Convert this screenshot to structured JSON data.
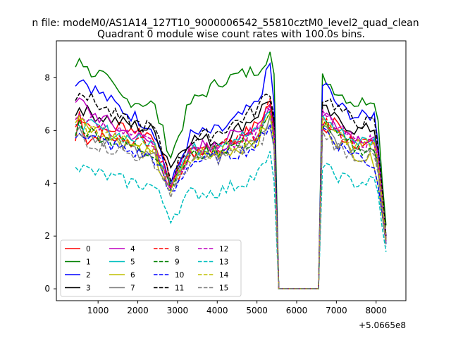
{
  "chart_data": {
    "type": "line",
    "suptitle": "n file: modeM0/AS1A14_127T10_9000006542_55810cztM0_level2_quad_clean",
    "title": "Quadrant 0 module wise count rates with 100.0s bins.",
    "xlabel": "",
    "ylabel": "",
    "x_offset_label": "+5.0665e8",
    "xlim": [
      -50,
      8750
    ],
    "ylim": [
      -0.45,
      9.4
    ],
    "x_ticks": [
      1000,
      2000,
      3000,
      4000,
      5000,
      6000,
      7000,
      8000
    ],
    "x_tick_labels": [
      "1000",
      "2000",
      "3000",
      "4000",
      "5000",
      "6000",
      "7000",
      "8000"
    ],
    "y_ticks": [
      0,
      2,
      4,
      6,
      8
    ],
    "y_tick_labels": [
      "0",
      "2",
      "4",
      "6",
      "8"
    ],
    "legend_position": "lower-left",
    "legend_columns": 4,
    "gap_segment": {
      "x": [
        5550,
        6550
      ],
      "y": 0
    },
    "series": [
      {
        "name": "0",
        "color": "#ff0000",
        "dash": "solid",
        "bursts": [
          [
            420,
            5.5
          ],
          [
            540,
            6.8
          ],
          [
            700,
            5.6
          ],
          [
            1600,
            6.2
          ],
          [
            2400,
            5.8
          ],
          [
            2840,
            4.0
          ],
          [
            3300,
            5.3
          ],
          [
            4100,
            5.2
          ],
          [
            5000,
            6.2
          ],
          [
            5350,
            7.1
          ],
          [
            5450,
            5.9
          ],
          [
            6700,
            6.0
          ],
          [
            7000,
            6.6
          ],
          [
            7500,
            5.4
          ],
          [
            8000,
            5.7
          ],
          [
            8250,
            2.0
          ]
        ]
      },
      {
        "name": "1",
        "color": "#008000",
        "dash": "solid",
        "bursts": [
          [
            420,
            8.4
          ],
          [
            540,
            8.9
          ],
          [
            700,
            8.3
          ],
          [
            1100,
            8.1
          ],
          [
            1600,
            7.2
          ],
          [
            2400,
            7.0
          ],
          [
            2840,
            5.0
          ],
          [
            3300,
            7.0
          ],
          [
            4100,
            7.9
          ],
          [
            5000,
            8.3
          ],
          [
            5350,
            9.0
          ],
          [
            5450,
            7.7
          ],
          [
            6700,
            8.0
          ],
          [
            7000,
            7.5
          ],
          [
            7500,
            7.0
          ],
          [
            8000,
            7.3
          ],
          [
            8250,
            2.4
          ]
        ]
      },
      {
        "name": "2",
        "color": "#0000ff",
        "dash": "solid",
        "bursts": [
          [
            420,
            7.7
          ],
          [
            540,
            8.1
          ],
          [
            700,
            7.8
          ],
          [
            1600,
            6.8
          ],
          [
            2400,
            6.1
          ],
          [
            2840,
            3.9
          ],
          [
            3300,
            5.8
          ],
          [
            4100,
            6.0
          ],
          [
            5000,
            7.0
          ],
          [
            5350,
            8.6
          ],
          [
            5450,
            6.5
          ],
          [
            6700,
            7.8
          ],
          [
            7000,
            7.0
          ],
          [
            7500,
            6.5
          ],
          [
            8000,
            6.6
          ],
          [
            8250,
            2.0
          ]
        ]
      },
      {
        "name": "3",
        "color": "#000000",
        "dash": "solid",
        "bursts": [
          [
            420,
            6.5
          ],
          [
            540,
            7.0
          ],
          [
            700,
            6.7
          ],
          [
            1600,
            6.3
          ],
          [
            2400,
            6.0
          ],
          [
            2840,
            4.7
          ],
          [
            3300,
            5.7
          ],
          [
            4100,
            5.6
          ],
          [
            5000,
            6.6
          ],
          [
            5350,
            7.3
          ],
          [
            5450,
            6.0
          ],
          [
            6700,
            6.8
          ],
          [
            7000,
            6.4
          ],
          [
            7500,
            6.0
          ],
          [
            8000,
            6.1
          ],
          [
            8250,
            1.9
          ]
        ]
      },
      {
        "name": "4",
        "color": "#bf00bf",
        "dash": "solid",
        "bursts": [
          [
            420,
            6.8
          ],
          [
            540,
            7.2
          ],
          [
            700,
            6.8
          ],
          [
            1600,
            6.0
          ],
          [
            2400,
            5.5
          ],
          [
            2840,
            3.8
          ],
          [
            3300,
            5.3
          ],
          [
            4100,
            5.6
          ],
          [
            5000,
            6.2
          ],
          [
            5350,
            7.0
          ],
          [
            5450,
            5.8
          ],
          [
            6700,
            6.7
          ],
          [
            7000,
            6.2
          ],
          [
            7500,
            5.7
          ],
          [
            8000,
            5.8
          ],
          [
            8250,
            1.9
          ]
        ]
      },
      {
        "name": "5",
        "color": "#00bfbf",
        "dash": "solid",
        "bursts": [
          [
            420,
            6.0
          ],
          [
            540,
            6.4
          ],
          [
            700,
            6.2
          ],
          [
            1600,
            5.8
          ],
          [
            2400,
            5.5
          ],
          [
            2840,
            4.1
          ],
          [
            3300,
            5.2
          ],
          [
            4100,
            5.6
          ],
          [
            5000,
            5.9
          ],
          [
            5350,
            6.8
          ],
          [
            5450,
            5.5
          ],
          [
            6700,
            6.5
          ],
          [
            7000,
            6.0
          ],
          [
            7500,
            5.6
          ],
          [
            8000,
            5.6
          ],
          [
            8250,
            1.8
          ]
        ]
      },
      {
        "name": "6",
        "color": "#bfbf00",
        "dash": "solid",
        "bursts": [
          [
            420,
            6.3
          ],
          [
            540,
            6.7
          ],
          [
            700,
            6.3
          ],
          [
            1600,
            5.6
          ],
          [
            2400,
            5.0
          ],
          [
            2840,
            3.7
          ],
          [
            3300,
            5.1
          ],
          [
            4100,
            5.2
          ],
          [
            5000,
            5.5
          ],
          [
            5350,
            6.5
          ],
          [
            5450,
            5.4
          ],
          [
            6700,
            6.2
          ],
          [
            7000,
            5.6
          ],
          [
            7500,
            5.1
          ],
          [
            8000,
            4.8
          ],
          [
            8250,
            1.7
          ]
        ]
      },
      {
        "name": "7",
        "color": "#808080",
        "dash": "solid",
        "bursts": [
          [
            420,
            5.8
          ],
          [
            540,
            6.1
          ],
          [
            700,
            5.9
          ],
          [
            1600,
            5.4
          ],
          [
            2400,
            5.1
          ],
          [
            2840,
            3.8
          ],
          [
            3300,
            5.0
          ],
          [
            4100,
            5.2
          ],
          [
            5000,
            5.6
          ],
          [
            5350,
            6.4
          ],
          [
            5450,
            5.3
          ],
          [
            6700,
            6.1
          ],
          [
            7000,
            5.6
          ],
          [
            7500,
            5.3
          ],
          [
            8000,
            5.4
          ],
          [
            8250,
            1.7
          ]
        ]
      },
      {
        "name": "8",
        "color": "#ff0000",
        "dash": "dashed",
        "bursts": [
          [
            420,
            6.3
          ],
          [
            540,
            6.6
          ],
          [
            700,
            6.3
          ],
          [
            1600,
            5.7
          ],
          [
            2400,
            5.4
          ],
          [
            2840,
            3.9
          ],
          [
            3300,
            5.1
          ],
          [
            4100,
            5.4
          ],
          [
            5000,
            5.9
          ],
          [
            5350,
            7.0
          ],
          [
            5450,
            5.6
          ],
          [
            6700,
            6.4
          ],
          [
            7000,
            5.9
          ],
          [
            7500,
            5.5
          ],
          [
            8000,
            5.5
          ],
          [
            8250,
            1.8
          ]
        ]
      },
      {
        "name": "9",
        "color": "#008000",
        "dash": "dashed",
        "bursts": [
          [
            420,
            6.0
          ],
          [
            540,
            6.3
          ],
          [
            700,
            6.0
          ],
          [
            1600,
            5.5
          ],
          [
            2400,
            5.2
          ],
          [
            2840,
            4.0
          ],
          [
            3300,
            5.0
          ],
          [
            4100,
            5.3
          ],
          [
            5000,
            5.6
          ],
          [
            5350,
            6.6
          ],
          [
            5450,
            5.4
          ],
          [
            6700,
            6.3
          ],
          [
            7000,
            5.8
          ],
          [
            7500,
            5.3
          ],
          [
            8000,
            5.3
          ],
          [
            8250,
            1.8
          ]
        ]
      },
      {
        "name": "10",
        "color": "#0000ff",
        "dash": "dashed",
        "bursts": [
          [
            420,
            5.8
          ],
          [
            540,
            6.1
          ],
          [
            700,
            5.8
          ],
          [
            1600,
            5.3
          ],
          [
            2400,
            5.0
          ],
          [
            2840,
            3.5
          ],
          [
            3300,
            4.8
          ],
          [
            4100,
            5.0
          ],
          [
            5000,
            5.4
          ],
          [
            5350,
            6.4
          ],
          [
            5450,
            5.2
          ],
          [
            6700,
            6.1
          ],
          [
            7000,
            5.5
          ],
          [
            7500,
            5.1
          ],
          [
            8000,
            4.6
          ],
          [
            8250,
            1.7
          ]
        ]
      },
      {
        "name": "11",
        "color": "#000000",
        "dash": "dashed",
        "bursts": [
          [
            420,
            7.3
          ],
          [
            540,
            7.7
          ],
          [
            700,
            7.3
          ],
          [
            1600,
            6.4
          ],
          [
            2400,
            6.1
          ],
          [
            2840,
            4.2
          ],
          [
            3300,
            5.6
          ],
          [
            4100,
            6.0
          ],
          [
            5000,
            6.8
          ],
          [
            5350,
            7.6
          ],
          [
            5450,
            6.2
          ],
          [
            6700,
            7.3
          ],
          [
            7000,
            6.9
          ],
          [
            7500,
            6.3
          ],
          [
            8000,
            6.3
          ],
          [
            8250,
            2.0
          ]
        ]
      },
      {
        "name": "12",
        "color": "#bf00bf",
        "dash": "dashed",
        "bursts": [
          [
            420,
            6.4
          ],
          [
            540,
            6.8
          ],
          [
            700,
            6.4
          ],
          [
            1600,
            5.9
          ],
          [
            2400,
            5.5
          ],
          [
            2840,
            3.8
          ],
          [
            3300,
            5.2
          ],
          [
            4100,
            5.4
          ],
          [
            5000,
            6.0
          ],
          [
            5350,
            6.9
          ],
          [
            5450,
            5.6
          ],
          [
            6700,
            6.6
          ],
          [
            7000,
            6.1
          ],
          [
            7500,
            5.6
          ],
          [
            8000,
            5.6
          ],
          [
            8250,
            1.8
          ]
        ]
      },
      {
        "name": "13",
        "color": "#00bfbf",
        "dash": "dashed",
        "bursts": [
          [
            420,
            4.9
          ],
          [
            540,
            4.6
          ],
          [
            700,
            4.5
          ],
          [
            1600,
            4.1
          ],
          [
            2400,
            3.9
          ],
          [
            2840,
            2.7
          ],
          [
            3300,
            3.6
          ],
          [
            4100,
            3.7
          ],
          [
            5000,
            4.3
          ],
          [
            5350,
            5.0
          ],
          [
            5450,
            4.1
          ],
          [
            6700,
            4.6
          ],
          [
            7000,
            4.3
          ],
          [
            7500,
            4.0
          ],
          [
            8000,
            4.1
          ],
          [
            8250,
            1.4
          ]
        ]
      },
      {
        "name": "14",
        "color": "#bfbf00",
        "dash": "dashed",
        "bursts": [
          [
            420,
            6.1
          ],
          [
            540,
            6.5
          ],
          [
            700,
            6.1
          ],
          [
            1600,
            5.6
          ],
          [
            2400,
            5.3
          ],
          [
            2840,
            3.8
          ],
          [
            3300,
            5.0
          ],
          [
            4100,
            5.3
          ],
          [
            5000,
            5.8
          ],
          [
            5350,
            6.7
          ],
          [
            5450,
            5.4
          ],
          [
            6700,
            6.3
          ],
          [
            7000,
            5.8
          ],
          [
            7500,
            5.4
          ],
          [
            8000,
            5.5
          ],
          [
            8250,
            1.8
          ]
        ]
      },
      {
        "name": "15",
        "color": "#808080",
        "dash": "dashed",
        "bursts": [
          [
            420,
            5.6
          ],
          [
            540,
            5.9
          ],
          [
            700,
            5.6
          ],
          [
            1600,
            5.2
          ],
          [
            2400,
            4.9
          ],
          [
            2840,
            3.6
          ],
          [
            3300,
            4.8
          ],
          [
            4100,
            5.0
          ],
          [
            5000,
            5.4
          ],
          [
            5350,
            6.2
          ],
          [
            5450,
            5.1
          ],
          [
            6700,
            5.9
          ],
          [
            7000,
            5.4
          ],
          [
            7500,
            5.0
          ],
          [
            8000,
            5.0
          ],
          [
            8250,
            1.6
          ]
        ]
      }
    ]
  }
}
